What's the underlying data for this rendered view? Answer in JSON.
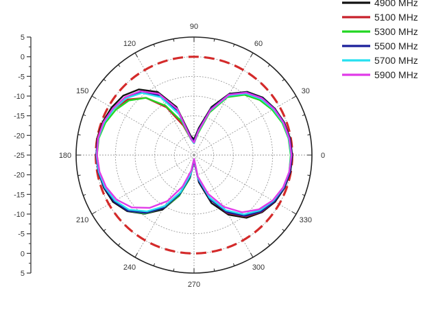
{
  "chart_data": {
    "type": "polar-line",
    "title": "",
    "radial_axis": {
      "unit": "dB",
      "ticks": [
        "5",
        "0",
        "-5",
        "-10",
        "-15",
        "-20",
        "-25",
        "-20",
        "-15",
        "-10",
        "-5",
        "0",
        "5"
      ],
      "r_min": -25,
      "r_max": 5,
      "r_step": 5
    },
    "angular_axis": {
      "unit": "degree",
      "ticks": [
        "0",
        "30",
        "60",
        "90",
        "120",
        "150",
        "180",
        "210",
        "240",
        "270",
        "300",
        "330"
      ],
      "step": 30,
      "grid": true
    },
    "reference_circle": {
      "value": 0,
      "color": "#d42a2a",
      "style": "dashed"
    },
    "legend_position": "top-right",
    "series": [
      {
        "name": "4900 MHz",
        "color": "#111111",
        "angles": [
          0,
          10,
          20,
          30,
          40,
          50,
          60,
          70,
          80,
          90,
          100,
          110,
          120,
          130,
          140,
          150,
          160,
          170,
          180,
          190,
          200,
          210,
          220,
          230,
          240,
          250,
          260,
          270,
          280,
          290,
          300,
          310,
          320,
          330,
          340,
          350
        ],
        "values": [
          0.0,
          -0.2,
          -0.6,
          -1.3,
          -2.2,
          -4.0,
          -7.0,
          -12.0,
          -18.0,
          -21.0,
          -20.0,
          -12.0,
          -6.5,
          -3.2,
          -1.5,
          -0.8,
          -0.3,
          0.0,
          -0.2,
          -0.3,
          -0.6,
          -1.2,
          -2.8,
          -5.5,
          -9.0,
          -14.0,
          -20.0,
          -24.0,
          -18.0,
          -12.0,
          -7.5,
          -4.2,
          -2.4,
          -1.2,
          -0.5,
          -0.1
        ]
      },
      {
        "name": "5100 MHz",
        "color": "#c8202a",
        "angles": [
          0,
          10,
          20,
          30,
          40,
          50,
          60,
          70,
          80,
          90,
          100,
          110,
          120,
          130,
          140,
          150,
          160,
          170,
          180,
          190,
          200,
          210,
          220,
          230,
          240,
          250,
          260,
          270,
          280,
          290,
          300,
          310,
          320,
          330,
          340,
          350
        ],
        "values": [
          -0.2,
          -0.4,
          -0.8,
          -1.6,
          -2.6,
          -4.5,
          -7.5,
          -13.0,
          -19.0,
          -22.0,
          -21.0,
          -17.0,
          -11.0,
          -6.0,
          -3.0,
          -1.5,
          -0.5,
          -0.1,
          -0.3,
          -0.5,
          -0.9,
          -1.8,
          -3.3,
          -6.0,
          -10.0,
          -15.0,
          -20.0,
          -24.0,
          -19.0,
          -13.0,
          -8.0,
          -4.6,
          -2.6,
          -1.4,
          -0.6,
          -0.2
        ]
      },
      {
        "name": "5300 MHz",
        "color": "#22d622",
        "angles": [
          0,
          10,
          20,
          30,
          40,
          50,
          60,
          70,
          80,
          90,
          100,
          110,
          120,
          130,
          140,
          150,
          160,
          170,
          180,
          190,
          200,
          210,
          220,
          230,
          240,
          250,
          260,
          270,
          280,
          290,
          300,
          310,
          320,
          330,
          340,
          350
        ],
        "values": [
          -0.4,
          -0.6,
          -1.1,
          -2.0,
          -3.2,
          -5.0,
          -8.0,
          -13.5,
          -19.5,
          -22.0,
          -21.0,
          -16.0,
          -10.5,
          -6.0,
          -3.4,
          -2.0,
          -1.0,
          -0.4,
          -0.3,
          -0.4,
          -0.8,
          -1.6,
          -3.0,
          -5.6,
          -9.5,
          -14.0,
          -19.0,
          -23.5,
          -19.0,
          -13.5,
          -8.5,
          -5.0,
          -2.9,
          -1.6,
          -0.8,
          -0.4
        ]
      },
      {
        "name": "5500 MHz",
        "color": "#1a1f9a",
        "angles": [
          0,
          10,
          20,
          30,
          40,
          50,
          60,
          70,
          80,
          90,
          100,
          110,
          120,
          130,
          140,
          150,
          160,
          170,
          180,
          190,
          200,
          210,
          220,
          230,
          240,
          250,
          260,
          270,
          280,
          290,
          300,
          310,
          320,
          330,
          340,
          350
        ],
        "values": [
          -0.1,
          -0.3,
          -0.7,
          -1.4,
          -2.4,
          -4.2,
          -7.2,
          -12.5,
          -18.5,
          -21.5,
          -20.5,
          -13.0,
          -7.5,
          -4.0,
          -2.2,
          -1.3,
          -0.6,
          -0.2,
          -0.1,
          -0.3,
          -0.7,
          -1.5,
          -3.0,
          -5.8,
          -9.5,
          -14.5,
          -19.5,
          -23.5,
          -18.5,
          -13.0,
          -8.2,
          -4.8,
          -2.7,
          -1.4,
          -0.6,
          -0.2
        ]
      },
      {
        "name": "5700 MHz",
        "color": "#26e0f0",
        "angles": [
          0,
          10,
          20,
          30,
          40,
          50,
          60,
          70,
          80,
          90,
          100,
          110,
          120,
          130,
          140,
          150,
          160,
          170,
          180,
          190,
          200,
          210,
          220,
          230,
          240,
          250,
          260,
          270,
          280,
          290,
          300,
          310,
          320,
          330,
          340,
          350
        ],
        "values": [
          -0.3,
          -0.5,
          -0.9,
          -1.7,
          -2.8,
          -4.6,
          -7.6,
          -13.0,
          -19.0,
          -22.0,
          -21.0,
          -14.0,
          -8.0,
          -4.4,
          -2.5,
          -1.5,
          -0.7,
          -0.3,
          -0.2,
          -0.4,
          -0.9,
          -1.8,
          -3.4,
          -6.3,
          -10.0,
          -15.0,
          -20.0,
          -24.0,
          -19.0,
          -13.5,
          -8.8,
          -5.3,
          -3.1,
          -1.7,
          -0.8,
          -0.4
        ]
      },
      {
        "name": "5900 MHz",
        "color": "#e03ae8",
        "angles": [
          0,
          10,
          20,
          30,
          40,
          50,
          60,
          70,
          80,
          90,
          100,
          110,
          120,
          130,
          140,
          150,
          160,
          170,
          180,
          190,
          200,
          210,
          220,
          230,
          240,
          250,
          260,
          270,
          280,
          290,
          300,
          310,
          320,
          330,
          340,
          350
        ],
        "values": [
          -0.2,
          -0.4,
          -0.8,
          -1.5,
          -2.5,
          -4.3,
          -7.3,
          -12.8,
          -18.8,
          -21.8,
          -20.8,
          -12.5,
          -7.0,
          -3.8,
          -2.1,
          -1.2,
          -0.5,
          -0.2,
          -0.3,
          -0.6,
          -1.2,
          -2.3,
          -4.3,
          -7.5,
          -11.5,
          -16.5,
          -21.0,
          -24.0,
          -19.5,
          -14.5,
          -9.8,
          -6.0,
          -3.5,
          -1.9,
          -0.9,
          -0.4
        ]
      }
    ]
  }
}
